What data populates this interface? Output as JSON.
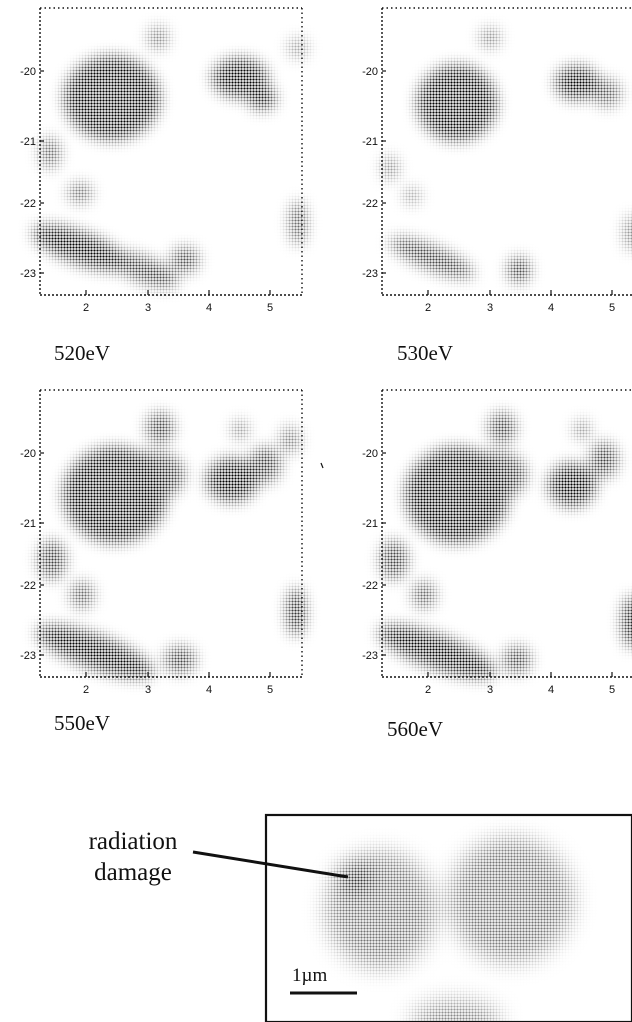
{
  "panels": [
    {
      "id": "p520",
      "caption": "520eV"
    },
    {
      "id": "p530",
      "caption": "530eV"
    },
    {
      "id": "p550",
      "caption": "550eV"
    },
    {
      "id": "p560",
      "caption": "560eV"
    }
  ],
  "axes": {
    "y_ticks": [
      "-20",
      "-21",
      "-22",
      "-23"
    ],
    "x_ticks": [
      "2",
      "3",
      "4",
      "5"
    ]
  },
  "inset": {
    "annotation_line1": "radiation",
    "annotation_line2": "damage",
    "scale_bar_label": "1µm"
  },
  "colors": {
    "ink": "#111111",
    "paper": "#ffffff"
  }
}
